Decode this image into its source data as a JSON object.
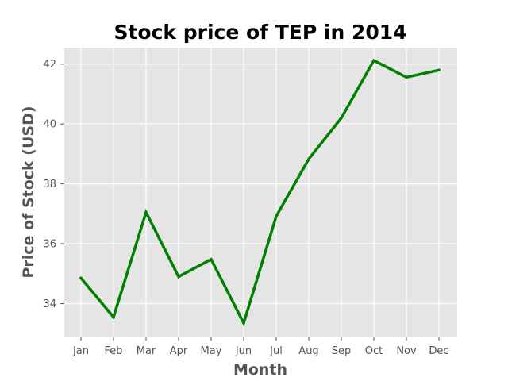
{
  "chart_data": {
    "type": "line",
    "title": "Stock price of TEP in 2014",
    "xlabel": "Month",
    "ylabel": "Price of Stock (USD)",
    "categories": [
      "Jan",
      "Feb",
      "Mar",
      "Apr",
      "May",
      "Jun",
      "Jul",
      "Aug",
      "Sep",
      "Oct",
      "Nov",
      "Dec"
    ],
    "series": [
      {
        "values": [
          34.85,
          33.55,
          37.05,
          34.9,
          35.48,
          33.35,
          36.92,
          38.83,
          40.2,
          42.12,
          41.56,
          41.8
        ],
        "color": "#008000"
      }
    ],
    "yticks": [
      34,
      36,
      38,
      40,
      42
    ],
    "ylim": [
      32.9,
      42.55
    ],
    "grid": true,
    "background": "#e5e5e5",
    "gridColor": "#ffffff"
  }
}
